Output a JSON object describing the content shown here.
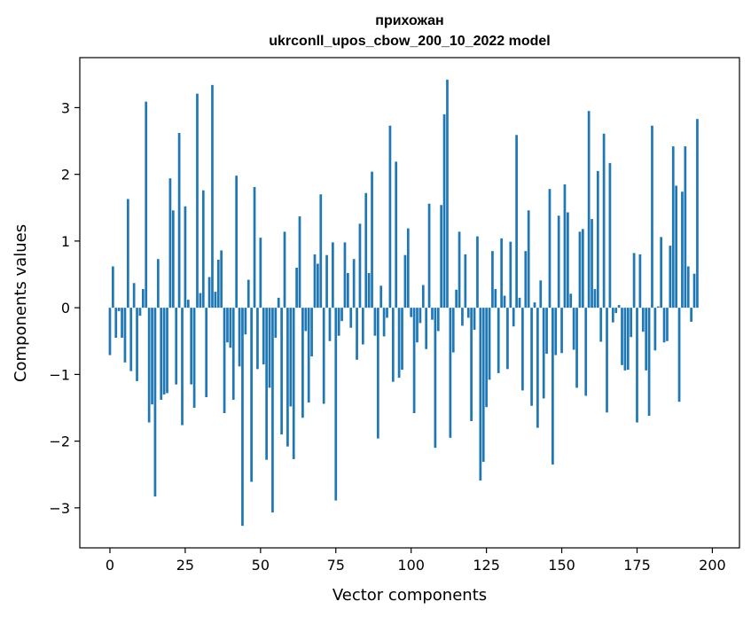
{
  "chart_data": {
    "type": "bar",
    "title": [
      "прихожан",
      "ukrconll_upos_cbow_200_10_2022 model"
    ],
    "xlabel": "Vector components",
    "ylabel": "Components values",
    "xlim": [
      -10,
      209
    ],
    "ylim": [
      -3.6,
      3.75
    ],
    "xticks": [
      0,
      25,
      50,
      75,
      100,
      125,
      150,
      175,
      200
    ],
    "yticks": [
      -3,
      -2,
      -1,
      0,
      1,
      2,
      3
    ],
    "ytick_labels": [
      "−3",
      "−2",
      "−1",
      "0",
      "1",
      "2",
      "3"
    ],
    "grid": false,
    "bar_color": "#1f77b4",
    "values": [
      -0.71,
      0.62,
      -0.45,
      -0.05,
      -0.45,
      -0.82,
      1.63,
      -0.95,
      0.37,
      -1.1,
      -0.12,
      0.28,
      3.09,
      -1.72,
      -1.45,
      -2.83,
      0.73,
      -1.38,
      -1.3,
      -1.28,
      1.94,
      1.46,
      -1.15,
      2.62,
      -1.76,
      1.52,
      0.12,
      -1.15,
      -1.5,
      3.21,
      0.22,
      1.76,
      -1.34,
      0.46,
      3.34,
      0.24,
      0.72,
      0.86,
      -1.58,
      -0.52,
      -0.6,
      -1.38,
      1.98,
      -0.88,
      -3.27,
      -0.4,
      0.42,
      -2.61,
      1.81,
      -0.92,
      1.05,
      -0.85,
      -2.28,
      -1.2,
      -3.07,
      -0.45,
      0.15,
      -1.9,
      1.14,
      -2.08,
      -1.48,
      -2.27,
      0.6,
      1.37,
      -1.65,
      -0.35,
      -1.42,
      -0.73,
      0.8,
      0.66,
      1.7,
      -1.44,
      0.79,
      -0.5,
      0.98,
      -2.89,
      -0.42,
      -0.2,
      0.98,
      0.52,
      -0.3,
      0.73,
      -0.78,
      1.26,
      -0.55,
      1.72,
      0.52,
      2.04,
      -0.42,
      -1.96,
      0.33,
      -0.43,
      -0.15,
      2.73,
      -1.11,
      2.19,
      -1.05,
      -0.93,
      0.79,
      1.19,
      -0.14,
      -1.58,
      -0.52,
      -0.23,
      0.34,
      -0.62,
      1.56,
      -0.18,
      -2.1,
      -0.35,
      1.54,
      2.9,
      3.42,
      -1.95,
      -0.67,
      0.27,
      1.14,
      -0.27,
      0.8,
      -0.15,
      -1.7,
      -0.33,
      1.07,
      -2.59,
      -2.31,
      -1.49,
      -1.08,
      0.85,
      0.28,
      -0.98,
      1.04,
      0.18,
      -0.92,
      0.99,
      -0.28,
      2.59,
      0.15,
      -1.24,
      0.85,
      1.46,
      -1.47,
      0.08,
      -1.8,
      0.41,
      -1.36,
      -0.69,
      1.78,
      -2.35,
      -0.71,
      1.38,
      -0.68,
      1.85,
      1.43,
      0.21,
      -0.63,
      -1.2,
      1.14,
      1.18,
      -1.32,
      2.95,
      1.33,
      0.28,
      2.05,
      -0.51,
      2.61,
      -1.57,
      2.17,
      -0.22,
      -0.08,
      0.04,
      -0.86,
      -0.94,
      -0.93,
      -0.44,
      0.82,
      -1.72,
      0.8,
      -0.36,
      -0.94,
      -1.62,
      2.73,
      -0.64,
      0.02,
      1.06,
      -0.52,
      -0.5,
      0.93,
      2.42,
      1.83,
      -1.41,
      1.74,
      2.42,
      0.62,
      -0.21,
      0.51,
      2.83
    ]
  }
}
